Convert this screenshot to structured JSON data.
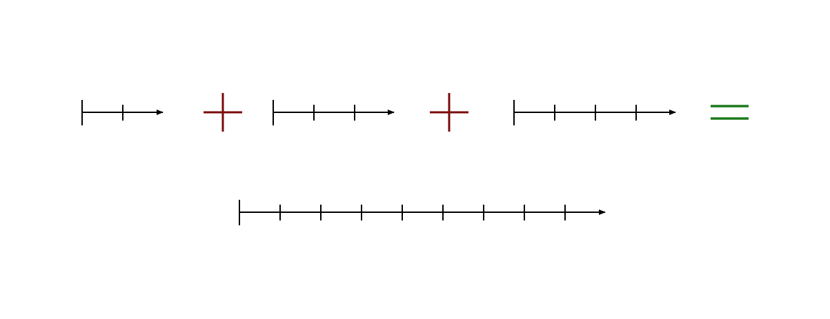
{
  "diagram": {
    "description_free": true,
    "equation": {
      "operands": [
        {
          "ticks": 2
        },
        {
          "ticks": 3
        },
        {
          "ticks": 4
        }
      ],
      "operators": [
        "plus",
        "plus"
      ],
      "equals": "equals",
      "result": {
        "ticks": 9
      }
    },
    "colors": {
      "line": "#000000",
      "plus": "#7a0a0a",
      "equals": "#1a7a1a"
    }
  }
}
